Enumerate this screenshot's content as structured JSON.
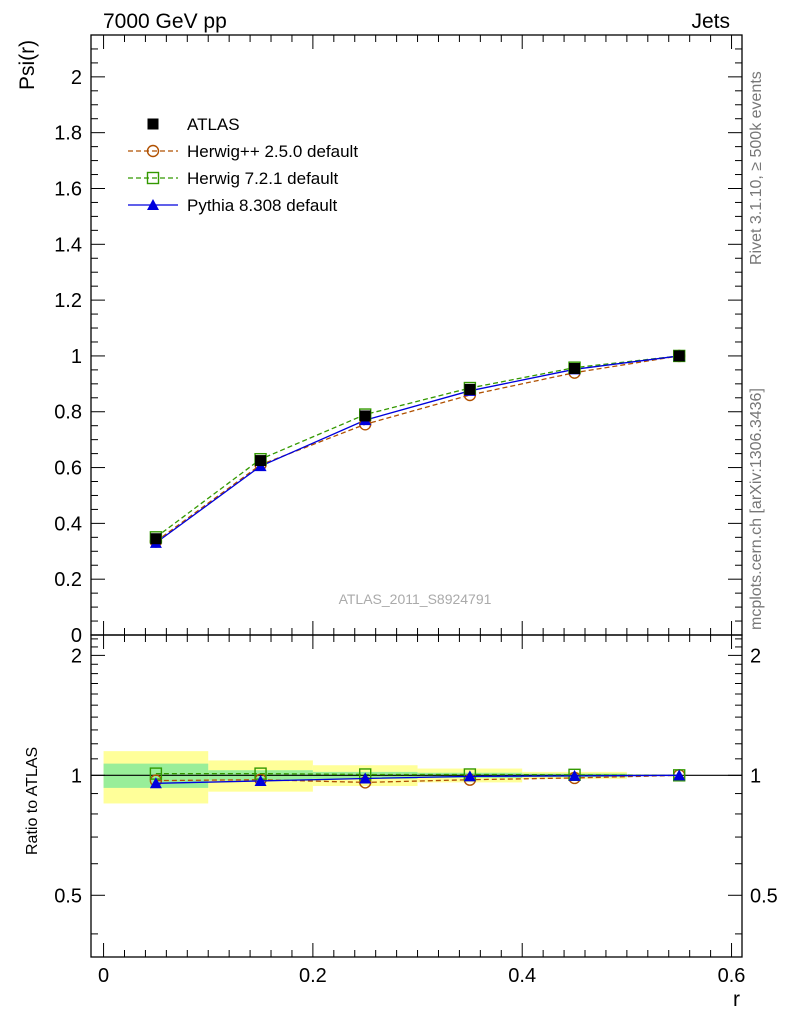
{
  "header": {
    "left": "7000 GeV pp",
    "right": "Jets"
  },
  "side_text": {
    "rivet": "Rivet 3.1.10, ≥ 500k events",
    "mcplots": "mcplots.cern.ch [arXiv:1306.3436]"
  },
  "watermark": "ATLAS_2011_S8924791",
  "chart_data": {
    "type": "line",
    "x": [
      0.05,
      0.15,
      0.25,
      0.35,
      0.45,
      0.55
    ],
    "bin_edges": [
      0.0,
      0.1,
      0.2,
      0.3,
      0.4,
      0.5,
      0.6
    ],
    "main": {
      "ylabel": "Psi(r)",
      "ylim": [
        0,
        2.15
      ],
      "yticks": [
        0,
        0.2,
        0.4,
        0.6,
        0.8,
        1,
        1.2,
        1.4,
        1.6,
        1.8,
        2
      ],
      "ytick_labels": [
        "0",
        "0.2",
        "0.4",
        "0.6",
        "0.8",
        "1",
        "1.2",
        "1.4",
        "1.6",
        "1.8",
        "2"
      ],
      "series": [
        {
          "name": "ATLAS",
          "color": "#000000",
          "marker": "square-filled",
          "line": "none",
          "values": [
            0.345,
            0.625,
            0.785,
            0.88,
            0.955,
            1.0
          ]
        },
        {
          "name": "Herwig++ 2.5.0 default",
          "color": "#b05000",
          "marker": "circle-open",
          "line": "dashed",
          "values": [
            0.335,
            0.61,
            0.755,
            0.86,
            0.94,
            1.0
          ]
        },
        {
          "name": "Herwig 7.2.1 default",
          "color": "#339900",
          "marker": "square-open",
          "line": "dashed",
          "values": [
            0.35,
            0.63,
            0.79,
            0.885,
            0.958,
            1.0
          ]
        },
        {
          "name": "Pythia 8.308 default",
          "color": "#0000dd",
          "marker": "triangle-filled",
          "line": "solid",
          "values": [
            0.33,
            0.605,
            0.77,
            0.875,
            0.952,
            1.0
          ]
        }
      ]
    },
    "ratio": {
      "ylabel": "Ratio to ATLAS",
      "ylim": [
        0.35,
        2.25
      ],
      "scale": "log",
      "yticks": [
        0.5,
        1,
        2
      ],
      "ytick_labels": [
        "0.5",
        "1",
        "2"
      ],
      "band_inner": [
        [
          0.93,
          1.07
        ],
        [
          0.97,
          1.03
        ],
        [
          0.98,
          1.02
        ],
        [
          0.985,
          1.015
        ],
        [
          0.99,
          1.01
        ],
        [
          1.0,
          1.0
        ]
      ],
      "band_outer": [
        [
          0.85,
          1.15
        ],
        [
          0.91,
          1.09
        ],
        [
          0.94,
          1.06
        ],
        [
          0.96,
          1.04
        ],
        [
          0.98,
          1.02
        ],
        [
          1.0,
          1.0
        ]
      ],
      "series": [
        {
          "name": "Herwig++ 2.5.0 default",
          "values": [
            0.97,
            0.975,
            0.96,
            0.975,
            0.985,
            1.0
          ]
        },
        {
          "name": "Herwig 7.2.1 default",
          "values": [
            1.01,
            1.01,
            1.005,
            1.005,
            1.003,
            1.0
          ]
        },
        {
          "name": "Pythia 8.308 default",
          "values": [
            0.955,
            0.968,
            0.982,
            0.994,
            0.997,
            1.0
          ]
        }
      ]
    },
    "xlabel": "r",
    "xlim": [
      -0.012,
      0.61
    ],
    "xticks": [
      0,
      0.2,
      0.4,
      0.6
    ],
    "xtick_labels": [
      "0",
      "0.2",
      "0.4",
      "0.6"
    ],
    "colors": {
      "band_inner": "#99ee99",
      "band_outer": "#ffff99"
    }
  }
}
